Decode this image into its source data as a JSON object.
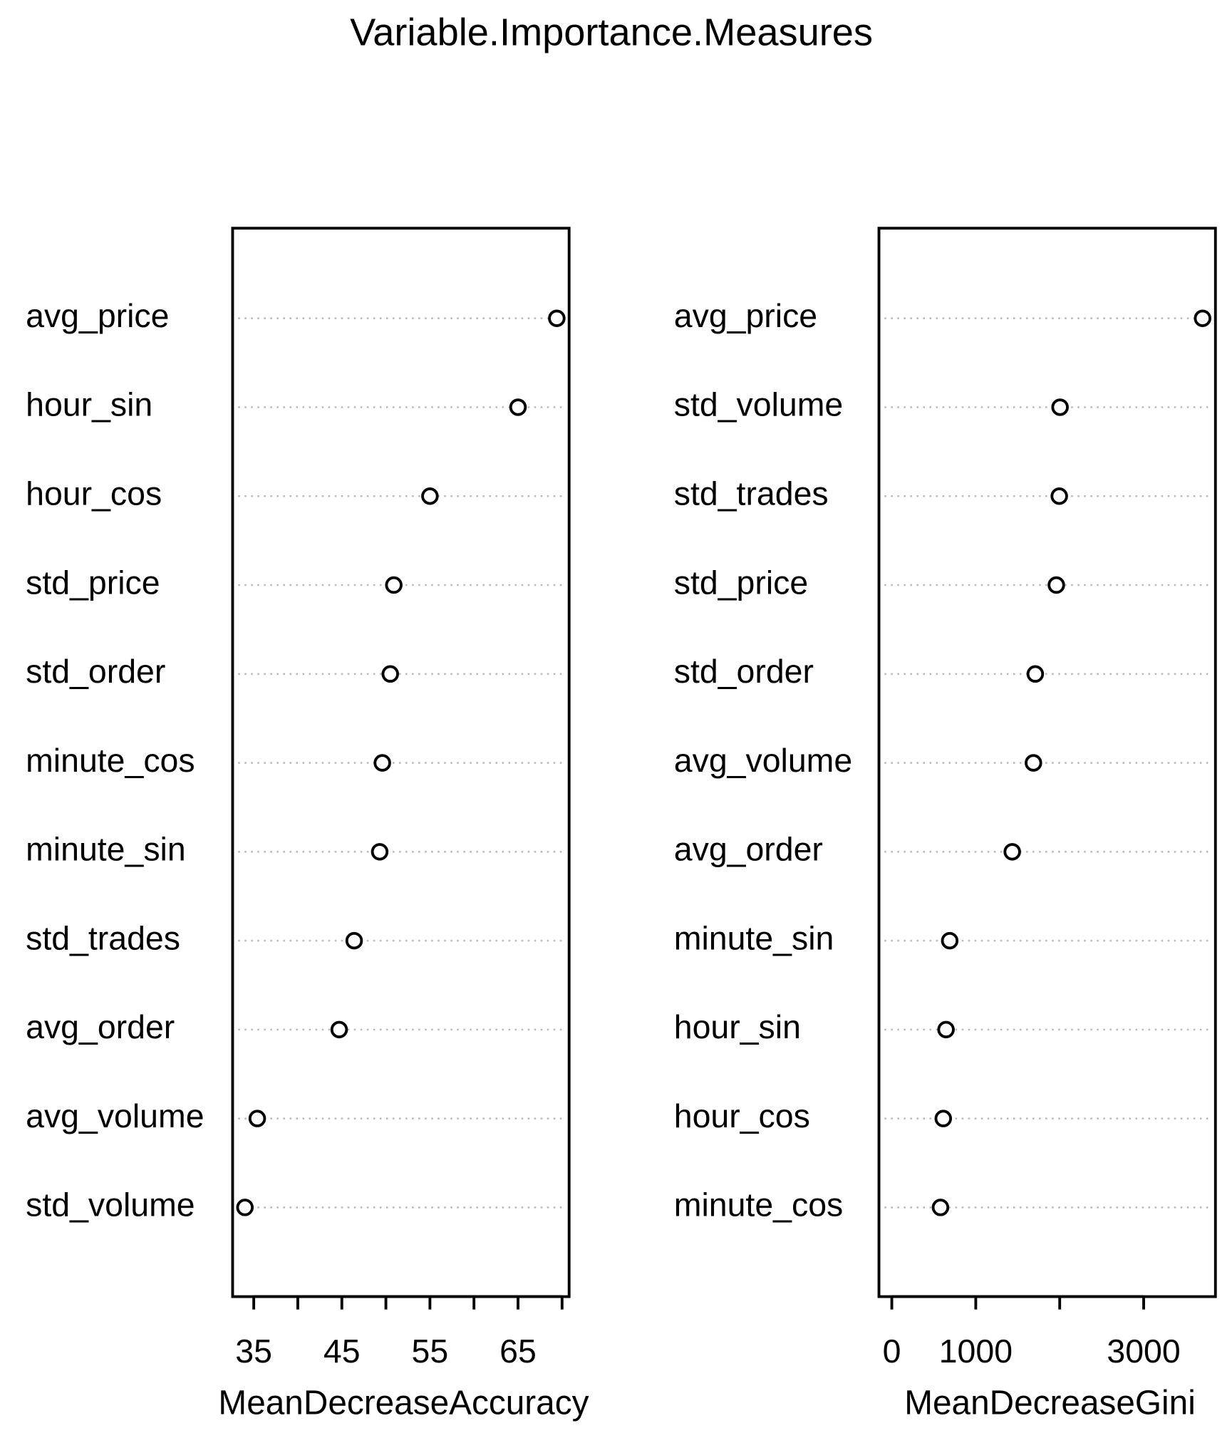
{
  "title": "Variable.Importance.Measures",
  "chart_data": [
    {
      "type": "dot",
      "categories": [
        "avg_price",
        "hour_sin",
        "hour_cos",
        "std_price",
        "std_order",
        "minute_cos",
        "minute_sin",
        "std_trades",
        "avg_order",
        "avg_volume",
        "std_volume"
      ],
      "values": [
        69.4,
        65.0,
        55.0,
        50.9,
        50.5,
        49.6,
        49.3,
        46.4,
        44.7,
        35.4,
        34.0
      ],
      "xlabel": "MeanDecreaseAccuracy",
      "xlim": [
        32.6,
        70.8
      ],
      "xticks": [
        35,
        45,
        55,
        65
      ],
      "xminor_ticks": [
        40,
        50,
        60,
        70
      ],
      "color": "#000000"
    },
    {
      "type": "dot",
      "categories": [
        "avg_price",
        "std_volume",
        "std_trades",
        "std_price",
        "std_order",
        "avg_volume",
        "avg_order",
        "minute_sin",
        "hour_sin",
        "hour_cos",
        "minute_cos"
      ],
      "values": [
        3702,
        2004,
        1995,
        1960,
        1709,
        1687,
        1435,
        690,
        646,
        613,
        580
      ],
      "xlabel": "MeanDecreaseGini",
      "xlim": [
        -153,
        3855
      ],
      "xticks": [
        0,
        1000,
        3000
      ],
      "xminor_ticks": [
        2000
      ],
      "color": "#000000"
    }
  ]
}
